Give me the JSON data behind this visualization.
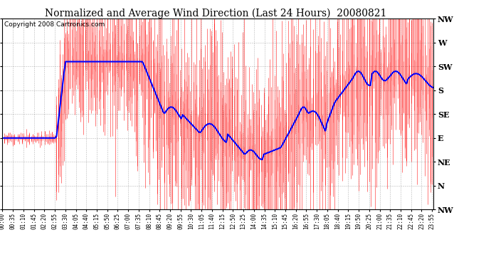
{
  "title": "Normalized and Average Wind Direction (Last 24 Hours)  20080821",
  "copyright": "Copyright 2008 Cartronics.com",
  "background_color": "#ffffff",
  "plot_bg_color": "#ffffff",
  "grid_color": "#888888",
  "red_color": "#ff0000",
  "blue_color": "#0000ff",
  "ytick_labels": [
    "NW",
    "W",
    "SW",
    "S",
    "SE",
    "E",
    "NE",
    "N",
    "NW"
  ],
  "ytick_values": [
    8,
    7,
    6,
    5,
    4,
    3,
    2,
    1,
    0
  ],
  "ymin": 0,
  "ymax": 8,
  "num_points": 288,
  "seed": 42,
  "title_fontsize": 10,
  "copyright_fontsize": 6.5,
  "ytick_fontsize": 8,
  "xtick_fontsize": 5.5
}
